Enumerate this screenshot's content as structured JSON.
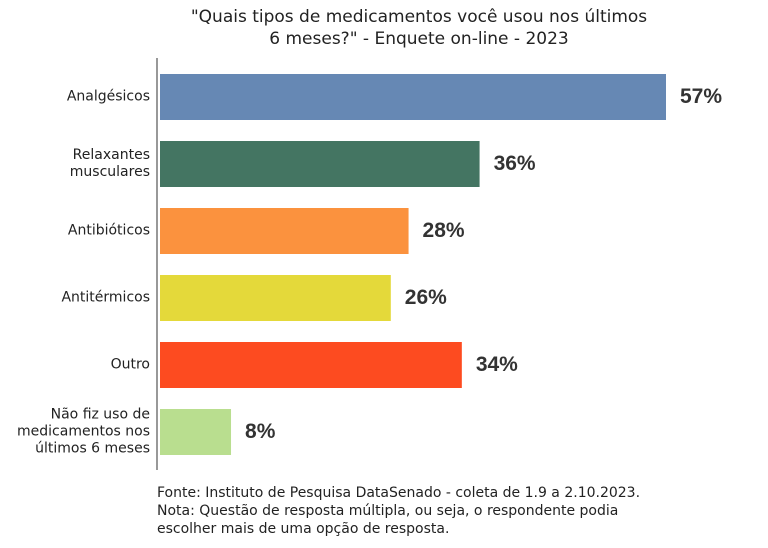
{
  "chart_data": {
    "type": "bar",
    "orientation": "horizontal",
    "title": "\"Quais tipos de medicamentos você usou nos últimos\n6 meses?\" - Enquete on-line - 2023",
    "categories": [
      "Analgésicos",
      "Relaxantes\nmusculares",
      "Antibióticos",
      "Antitérmicos",
      "Outro",
      "Não fiz uso de\nmedicamentos nos\núltimos 6 meses"
    ],
    "values": [
      57,
      36,
      28,
      26,
      34,
      8
    ],
    "value_labels": [
      "57%",
      "36%",
      "28%",
      "26%",
      "34%",
      "8%"
    ],
    "colors": [
      "#6688b4",
      "#447562",
      "#fb923e",
      "#e4d93a",
      "#fd4b20",
      "#b9de8f"
    ],
    "source": "Fonte: Instituto de Pesquisa DataSenado - coleta de 1.9 a 2.10.2023.",
    "note": "Nota: Questão de resposta múltipla, ou seja, o respondente podia\nescolher mais de uma opção de resposta."
  }
}
